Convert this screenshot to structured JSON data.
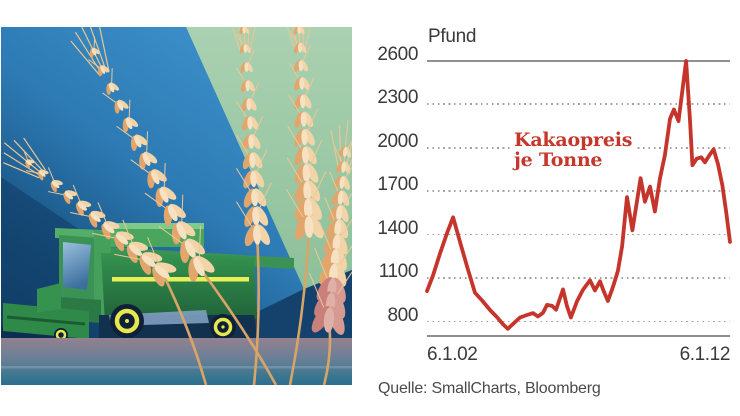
{
  "illustration": {
    "name": "wheat-harvester-illustration",
    "description": "Stylized illustration of a green combine harvester behind large golden wheat ears, on a blue background with a sage-green diagonal wedge and a mauve-to-teal ground band"
  },
  "chart": {
    "unit_label": "Pfund",
    "series_label_line1": "Kakaopreis",
    "series_label_line2": "je Tonne",
    "source": "Quelle: SmallCharts, Bloomberg",
    "colors": {
      "line": "#c5352b",
      "label": "#c5362b",
      "grid_solid": "#8f8f8f",
      "grid_dotted": "#a2a2a2",
      "text": "#3a3a3a"
    }
  },
  "chart_data": {
    "type": "line",
    "title": "Kakaopreis je Tonne",
    "ylabel": "Pfund",
    "xtick_labels": [
      "6.1.02",
      "6.1.12"
    ],
    "yticks": [
      800,
      1100,
      1400,
      1700,
      2000,
      2300,
      2600
    ],
    "xlim": [
      2002,
      2012
    ],
    "ylim": [
      700,
      2600
    ],
    "grid": "horizontal dotted, solid top line at 2600 and solid bottom axis",
    "legend_position": "none",
    "x": [
      2002.0,
      2002.2,
      2002.43,
      2002.66,
      2002.86,
      2003.09,
      2003.35,
      2003.58,
      2003.82,
      2004.08,
      2004.31,
      2004.51,
      2004.67,
      2004.87,
      2005.07,
      2005.3,
      2005.5,
      2005.66,
      2005.83,
      2005.96,
      2006.13,
      2006.26,
      2006.49,
      2006.62,
      2006.75,
      2006.95,
      2007.15,
      2007.38,
      2007.54,
      2007.71,
      2007.84,
      2007.97,
      2008.14,
      2008.3,
      2008.44,
      2008.6,
      2008.78,
      2009.05,
      2009.19,
      2009.36,
      2009.52,
      2009.69,
      2009.85,
      2010.02,
      2010.15,
      2010.3,
      2010.55,
      2010.68,
      2010.76,
      2010.9,
      2011.05,
      2011.17,
      2011.34,
      2011.46,
      2011.6,
      2011.75,
      2011.87,
      2012.0
    ],
    "values": [
      1010,
      1120,
      1270,
      1410,
      1520,
      1350,
      1160,
      1000,
      945,
      880,
      830,
      780,
      750,
      790,
      828,
      845,
      858,
      835,
      860,
      915,
      908,
      882,
      1022,
      905,
      828,
      940,
      1020,
      1085,
      1015,
      1078,
      1005,
      942,
      1040,
      1150,
      1320,
      1660,
      1430,
      1790,
      1628,
      1732,
      1560,
      1790,
      1950,
      2200,
      2265,
      2185,
      2600,
      2190,
      1880,
      1925,
      1935,
      1900,
      1955,
      1990,
      1890,
      1740,
      1560,
      1350
    ]
  }
}
